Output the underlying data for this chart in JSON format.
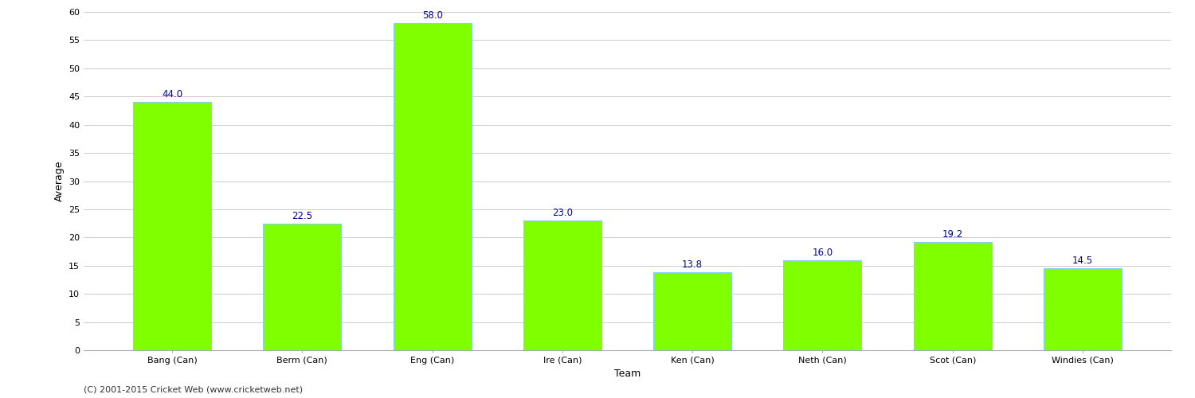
{
  "categories": [
    "Bang (Can)",
    "Berm (Can)",
    "Eng (Can)",
    "Ire (Can)",
    "Ken (Can)",
    "Neth (Can)",
    "Scot (Can)",
    "Windies (Can)"
  ],
  "values": [
    44.0,
    22.5,
    58.0,
    23.0,
    13.8,
    16.0,
    19.2,
    14.5
  ],
  "bar_color": "#7fff00",
  "bar_edge_color": "#88ccff",
  "bar_edge_width": 0.8,
  "xlabel": "Team",
  "ylabel": "Average",
  "ylim": [
    0,
    60
  ],
  "yticks": [
    0,
    5,
    10,
    15,
    20,
    25,
    30,
    35,
    40,
    45,
    50,
    55,
    60
  ],
  "label_color": "#000099",
  "label_fontsize": 8.5,
  "ylabel_fontsize": 9,
  "xlabel_fontsize": 9,
  "tick_fontsize": 8,
  "background_color": "#ffffff",
  "grid_color": "#cccccc",
  "footer_text": "(C) 2001-2015 Cricket Web (www.cricketweb.net)",
  "footer_fontsize": 8,
  "footer_color": "#333333",
  "bar_width": 0.6
}
